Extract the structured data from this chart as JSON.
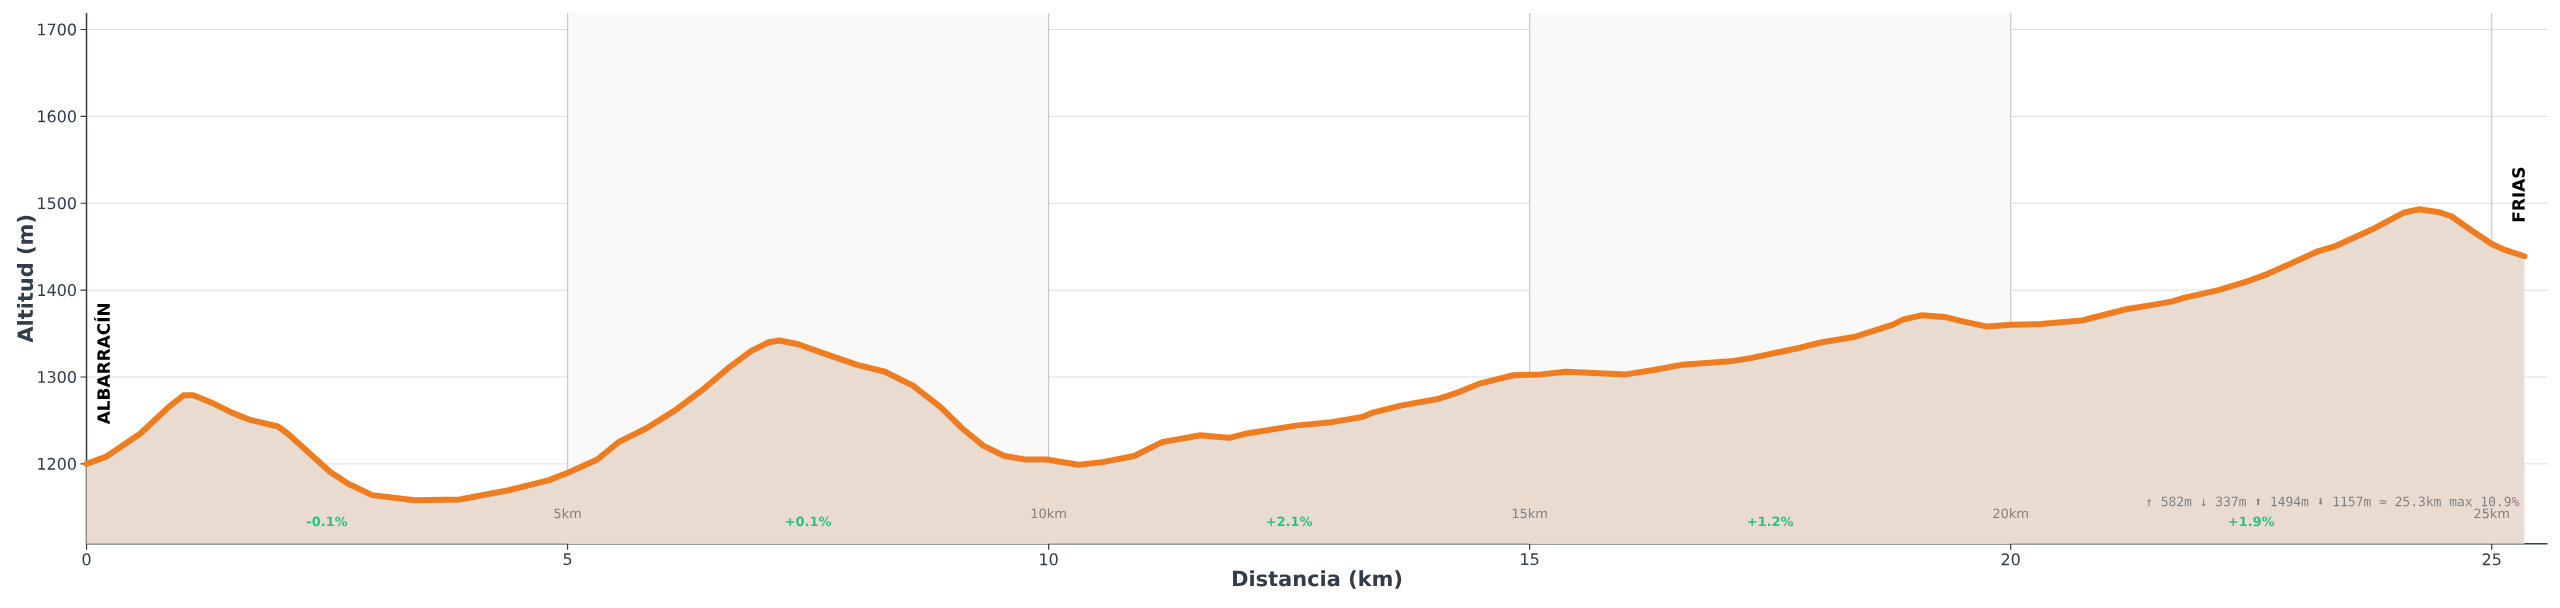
{
  "chart_data": {
    "type": "area",
    "xlabel": "Distancia (km)",
    "ylabel": "Altitud (m)",
    "color": "#ee7d22",
    "x": [
      0,
      0.2,
      0.56,
      0.85,
      1.01,
      1.11,
      1.29,
      1.51,
      1.69,
      1.99,
      2.09,
      2.31,
      2.53,
      2.72,
      2.97,
      3.41,
      3.88,
      4.07,
      4.36,
      4.8,
      5.01,
      5.31,
      5.53,
      5.82,
      6.11,
      6.4,
      6.69,
      6.91,
      7.09,
      7.2,
      7.39,
      7.64,
      8.01,
      8.3,
      8.59,
      8.88,
      9.1,
      9.32,
      9.54,
      9.76,
      9.98,
      10.2,
      10.31,
      10.56,
      10.89,
      11.18,
      11.58,
      11.77,
      11.88,
      12.06,
      12.57,
      12.94,
      13.26,
      13.37,
      13.66,
      14.06,
      14.25,
      14.47,
      14.83,
      15.12,
      15.38,
      15.78,
      16.0,
      16.29,
      16.58,
      17.09,
      17.31,
      17.82,
      18.04,
      18.37,
      18.77,
      18.88,
      19.07,
      19.32,
      19.5,
      19.76,
      20.01,
      20.31,
      20.74,
      21.2,
      21.48,
      21.68,
      21.8,
      22.16,
      22.46,
      22.68,
      23.08,
      23.2,
      23.36,
      23.76,
      24.08,
      24.24,
      24.44,
      24.58,
      24.76,
      25.0,
      25.12,
      25.34
    ],
    "values": [
      1200,
      1208,
      1235,
      1265,
      1279,
      1279,
      1271,
      1259,
      1251,
      1243,
      1235,
      1213,
      1191,
      1177,
      1164,
      1158,
      1159,
      1163,
      1169,
      1181,
      1190,
      1205,
      1225,
      1241,
      1261,
      1285,
      1312,
      1330,
      1340,
      1342,
      1338,
      1328,
      1314,
      1306,
      1290,
      1265,
      1241,
      1221,
      1209,
      1205,
      1205,
      1201,
      1199,
      1202,
      1209,
      1225,
      1233,
      1231,
      1230,
      1235,
      1244,
      1248,
      1254,
      1259,
      1267,
      1275,
      1282,
      1292,
      1302,
      1303,
      1306,
      1304,
      1303,
      1308,
      1314,
      1318,
      1322,
      1334,
      1340,
      1346,
      1360,
      1366,
      1371,
      1369,
      1364,
      1358,
      1360,
      1361,
      1365,
      1378,
      1383,
      1387,
      1391,
      1400,
      1410,
      1419,
      1439,
      1445,
      1450,
      1470,
      1489,
      1493,
      1490,
      1485,
      1471,
      1453,
      1447,
      1439
    ],
    "xlim": [
      0,
      25.58
    ],
    "ylim": [
      1108,
      1719
    ],
    "xticks": [
      0,
      5,
      10,
      15,
      20,
      25
    ],
    "yticks": [
      1200,
      1300,
      1400,
      1500,
      1600,
      1700
    ],
    "grid": "y",
    "marker": "none",
    "line_style": "solid",
    "bands": [
      {
        "axis": "x",
        "from": 5,
        "to": 10,
        "color": "#f9f9f9"
      },
      {
        "axis": "x",
        "from": 15,
        "to": 20,
        "color": "#f9f9f9"
      }
    ],
    "ref_lines": [
      {
        "axis": "x",
        "value": 5,
        "label": "5km",
        "color": "#c8c8d0"
      },
      {
        "axis": "x",
        "value": 10,
        "label": "10km",
        "color": "#c8c8d0"
      },
      {
        "axis": "x",
        "value": 15,
        "label": "15km",
        "color": "#c8c8d0"
      },
      {
        "axis": "x",
        "value": 20,
        "label": "20km",
        "color": "#c8c8d0"
      },
      {
        "axis": "x",
        "value": 25,
        "label": "25km",
        "color": "#c8c8d0"
      }
    ],
    "annotations": [
      "ALBARRACÍN",
      "FRIAS",
      "-0.1%",
      "+0.1%",
      "+2.1%",
      "+1.2%",
      "+1.9%",
      "↑ 582m  ↓ 337m  ⬆ 1494m  ⬇ 1157m  ≈ 25.3km  max 10.9%"
    ]
  }
}
